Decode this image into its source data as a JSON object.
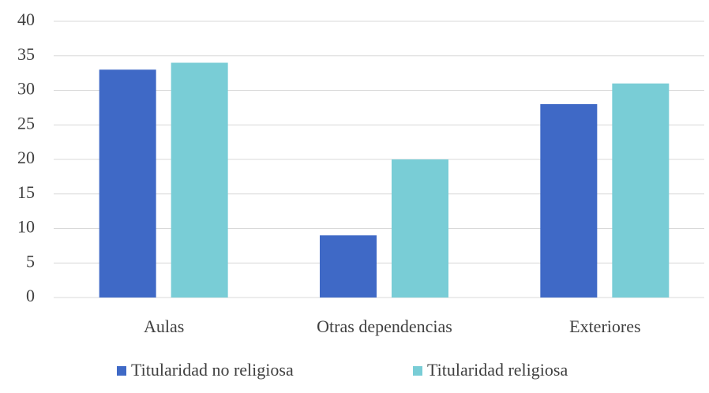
{
  "chart_data": {
    "type": "bar",
    "categories": [
      "Aulas",
      "Otras dependencias",
      "Exteriores"
    ],
    "series": [
      {
        "name": "Titularidad no religiosa",
        "color": "#3f69c6",
        "values": [
          33,
          9,
          28
        ]
      },
      {
        "name": "Titularidad religiosa",
        "color": "#79cdd6",
        "values": [
          34,
          20,
          31
        ]
      }
    ],
    "ylim": [
      0,
      40
    ],
    "yticks": [
      0,
      5,
      10,
      15,
      20,
      25,
      30,
      35,
      40
    ],
    "grid": true,
    "legend": "bottom"
  }
}
